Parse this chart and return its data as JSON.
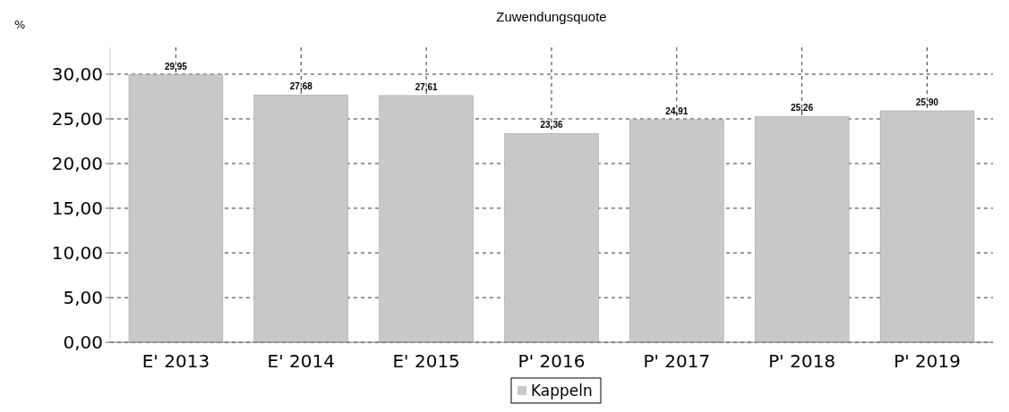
{
  "chart_data": {
    "type": "bar",
    "title": "Zuwendungsquote",
    "ylabel": "%",
    "categories": [
      "E' 2013",
      "E' 2014",
      "E' 2015",
      "P' 2016",
      "P' 2017",
      "P' 2018",
      "P' 2019"
    ],
    "series": [
      {
        "name": "Kappeln",
        "color": "#c8c8c8",
        "values": [
          29.95,
          27.68,
          27.61,
          23.36,
          24.91,
          25.26,
          25.9
        ],
        "value_labels": [
          "29,95",
          "27,68",
          "27,61",
          "23,36",
          "24,91",
          "25,26",
          "25,90"
        ]
      }
    ],
    "ylim": [
      0,
      33
    ],
    "yticks": [
      {
        "value": 0,
        "label": "0,00"
      },
      {
        "value": 5,
        "label": "5,00"
      },
      {
        "value": 10,
        "label": "10,00"
      },
      {
        "value": 15,
        "label": "15,00"
      },
      {
        "value": 20,
        "label": "20,00"
      },
      {
        "value": 25,
        "label": "25,00"
      },
      {
        "value": 30,
        "label": "30,00"
      }
    ],
    "grid": true,
    "legend": "bottom"
  }
}
